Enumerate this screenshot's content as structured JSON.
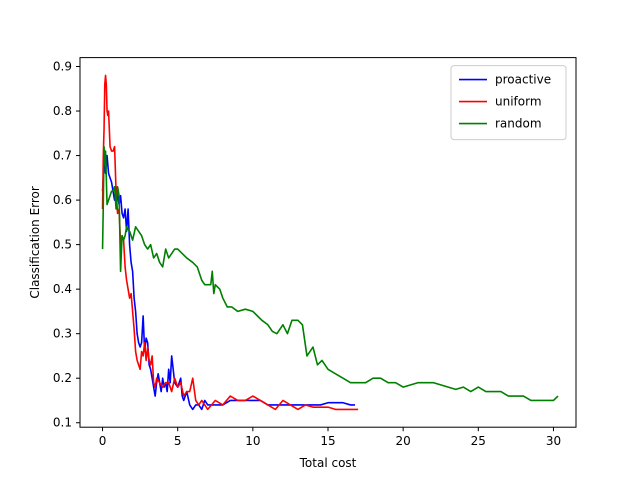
{
  "chart_data": {
    "type": "line",
    "title": "",
    "xlabel": "Total cost",
    "ylabel": "Classification Error",
    "xlim": [
      -1.5,
      31.5
    ],
    "ylim": [
      0.09,
      0.92
    ],
    "xticks": [
      0,
      5,
      10,
      15,
      20,
      25,
      30
    ],
    "yticks": [
      0.1,
      0.2,
      0.3,
      0.4,
      0.5,
      0.6,
      0.7,
      0.8,
      0.9
    ],
    "grid": false,
    "legend_position": "upper right",
    "series": [
      {
        "name": "proactive",
        "color": "#0000ff",
        "x": [
          0.0,
          0.1,
          0.2,
          0.3,
          0.4,
          0.5,
          0.6,
          0.7,
          0.8,
          0.9,
          1.0,
          1.1,
          1.2,
          1.3,
          1.4,
          1.5,
          1.6,
          1.7,
          1.8,
          1.9,
          2.0,
          2.1,
          2.2,
          2.3,
          2.4,
          2.5,
          2.6,
          2.7,
          2.8,
          2.9,
          3.0,
          3.1,
          3.2,
          3.3,
          3.4,
          3.5,
          3.6,
          3.7,
          3.8,
          3.9,
          4.0,
          4.1,
          4.2,
          4.3,
          4.4,
          4.5,
          4.6,
          4.8,
          5.0,
          5.2,
          5.3,
          5.4,
          5.6,
          5.8,
          6.0,
          6.2,
          6.4,
          6.6,
          6.8,
          7.0,
          7.2,
          7.5,
          8.0,
          8.5,
          9.0,
          9.5,
          10.0,
          10.5,
          11.0,
          11.5,
          12.0,
          12.5,
          13.0,
          13.5,
          14.0,
          14.5,
          15.0,
          15.5,
          16.0,
          16.5,
          16.8
        ],
        "y": [
          0.62,
          0.68,
          0.66,
          0.7,
          0.66,
          0.65,
          0.64,
          0.62,
          0.6,
          0.63,
          0.61,
          0.59,
          0.61,
          0.57,
          0.56,
          0.58,
          0.53,
          0.58,
          0.5,
          0.46,
          0.44,
          0.38,
          0.35,
          0.3,
          0.28,
          0.27,
          0.28,
          0.34,
          0.26,
          0.29,
          0.28,
          0.23,
          0.22,
          0.2,
          0.18,
          0.16,
          0.19,
          0.21,
          0.19,
          0.17,
          0.2,
          0.18,
          0.19,
          0.17,
          0.22,
          0.19,
          0.25,
          0.19,
          0.18,
          0.2,
          0.16,
          0.15,
          0.17,
          0.14,
          0.13,
          0.14,
          0.14,
          0.13,
          0.15,
          0.14,
          0.14,
          0.14,
          0.14,
          0.15,
          0.15,
          0.15,
          0.15,
          0.15,
          0.14,
          0.14,
          0.14,
          0.14,
          0.14,
          0.14,
          0.14,
          0.14,
          0.145,
          0.145,
          0.145,
          0.14,
          0.14
        ]
      },
      {
        "name": "uniform",
        "color": "#ff0000",
        "x": [
          0.0,
          0.05,
          0.1,
          0.15,
          0.2,
          0.25,
          0.3,
          0.35,
          0.4,
          0.5,
          0.6,
          0.7,
          0.8,
          0.9,
          1.0,
          1.1,
          1.2,
          1.3,
          1.4,
          1.5,
          1.6,
          1.7,
          1.8,
          1.9,
          2.0,
          2.1,
          2.2,
          2.3,
          2.4,
          2.5,
          2.6,
          2.7,
          2.8,
          2.9,
          3.0,
          3.1,
          3.2,
          3.3,
          3.4,
          3.5,
          3.6,
          3.8,
          4.0,
          4.2,
          4.4,
          4.6,
          4.8,
          5.0,
          5.2,
          5.4,
          5.6,
          5.8,
          6.0,
          6.2,
          6.4,
          6.6,
          6.8,
          7.0,
          7.5,
          8.0,
          8.5,
          9.0,
          9.5,
          10.0,
          10.5,
          11.0,
          11.5,
          12.0,
          12.5,
          13.0,
          13.5,
          14.0,
          14.5,
          15.0,
          15.5,
          16.0,
          16.5,
          17.0
        ],
        "y": [
          0.58,
          0.7,
          0.76,
          0.86,
          0.88,
          0.86,
          0.8,
          0.79,
          0.8,
          0.72,
          0.71,
          0.71,
          0.72,
          0.62,
          0.57,
          0.58,
          0.5,
          0.52,
          0.51,
          0.45,
          0.42,
          0.4,
          0.38,
          0.39,
          0.35,
          0.31,
          0.26,
          0.24,
          0.23,
          0.22,
          0.26,
          0.25,
          0.28,
          0.24,
          0.27,
          0.24,
          0.23,
          0.25,
          0.19,
          0.18,
          0.2,
          0.19,
          0.18,
          0.19,
          0.19,
          0.17,
          0.2,
          0.18,
          0.19,
          0.16,
          0.17,
          0.17,
          0.2,
          0.15,
          0.14,
          0.15,
          0.14,
          0.13,
          0.15,
          0.14,
          0.16,
          0.15,
          0.15,
          0.16,
          0.15,
          0.14,
          0.13,
          0.15,
          0.14,
          0.13,
          0.14,
          0.135,
          0.135,
          0.135,
          0.13,
          0.13,
          0.13,
          0.13
        ]
      },
      {
        "name": "random",
        "color": "#008000",
        "x": [
          0.0,
          0.05,
          0.1,
          0.15,
          0.2,
          0.3,
          0.4,
          0.5,
          0.6,
          0.7,
          0.8,
          0.9,
          1.0,
          1.1,
          1.2,
          1.3,
          1.4,
          1.5,
          1.6,
          1.8,
          2.0,
          2.2,
          2.4,
          2.6,
          2.8,
          3.0,
          3.2,
          3.4,
          3.6,
          3.8,
          4.0,
          4.2,
          4.4,
          4.6,
          4.8,
          5.0,
          5.3,
          5.6,
          6.0,
          6.3,
          6.6,
          6.8,
          7.0,
          7.2,
          7.3,
          7.4,
          7.5,
          7.8,
          8.0,
          8.3,
          8.6,
          9.0,
          9.5,
          10.0,
          10.3,
          10.6,
          11.0,
          11.3,
          11.6,
          12.0,
          12.3,
          12.6,
          13.0,
          13.3,
          13.6,
          14.0,
          14.3,
          14.6,
          15.0,
          15.5,
          16.0,
          16.5,
          17.0,
          17.5,
          18.0,
          18.5,
          19.0,
          19.5,
          20.0,
          20.5,
          21.0,
          21.5,
          22.0,
          22.5,
          23.0,
          23.5,
          24.0,
          24.5,
          25.0,
          25.5,
          26.0,
          26.5,
          27.0,
          27.5,
          28.0,
          28.5,
          29.0,
          29.5,
          30.0,
          30.3
        ],
        "y": [
          0.49,
          0.59,
          0.72,
          0.68,
          0.71,
          0.59,
          0.6,
          0.61,
          0.62,
          0.62,
          0.63,
          0.58,
          0.63,
          0.61,
          0.44,
          0.52,
          0.51,
          0.52,
          0.54,
          0.53,
          0.51,
          0.54,
          0.53,
          0.52,
          0.5,
          0.49,
          0.5,
          0.47,
          0.48,
          0.46,
          0.45,
          0.49,
          0.47,
          0.48,
          0.49,
          0.49,
          0.48,
          0.47,
          0.46,
          0.45,
          0.42,
          0.41,
          0.41,
          0.41,
          0.44,
          0.39,
          0.41,
          0.4,
          0.38,
          0.36,
          0.36,
          0.35,
          0.355,
          0.35,
          0.34,
          0.33,
          0.32,
          0.305,
          0.3,
          0.32,
          0.3,
          0.33,
          0.33,
          0.32,
          0.25,
          0.27,
          0.23,
          0.24,
          0.22,
          0.21,
          0.2,
          0.19,
          0.19,
          0.19,
          0.2,
          0.2,
          0.19,
          0.19,
          0.18,
          0.185,
          0.19,
          0.19,
          0.19,
          0.185,
          0.18,
          0.175,
          0.18,
          0.17,
          0.18,
          0.17,
          0.17,
          0.17,
          0.16,
          0.16,
          0.16,
          0.15,
          0.15,
          0.15,
          0.15,
          0.16
        ]
      }
    ]
  }
}
